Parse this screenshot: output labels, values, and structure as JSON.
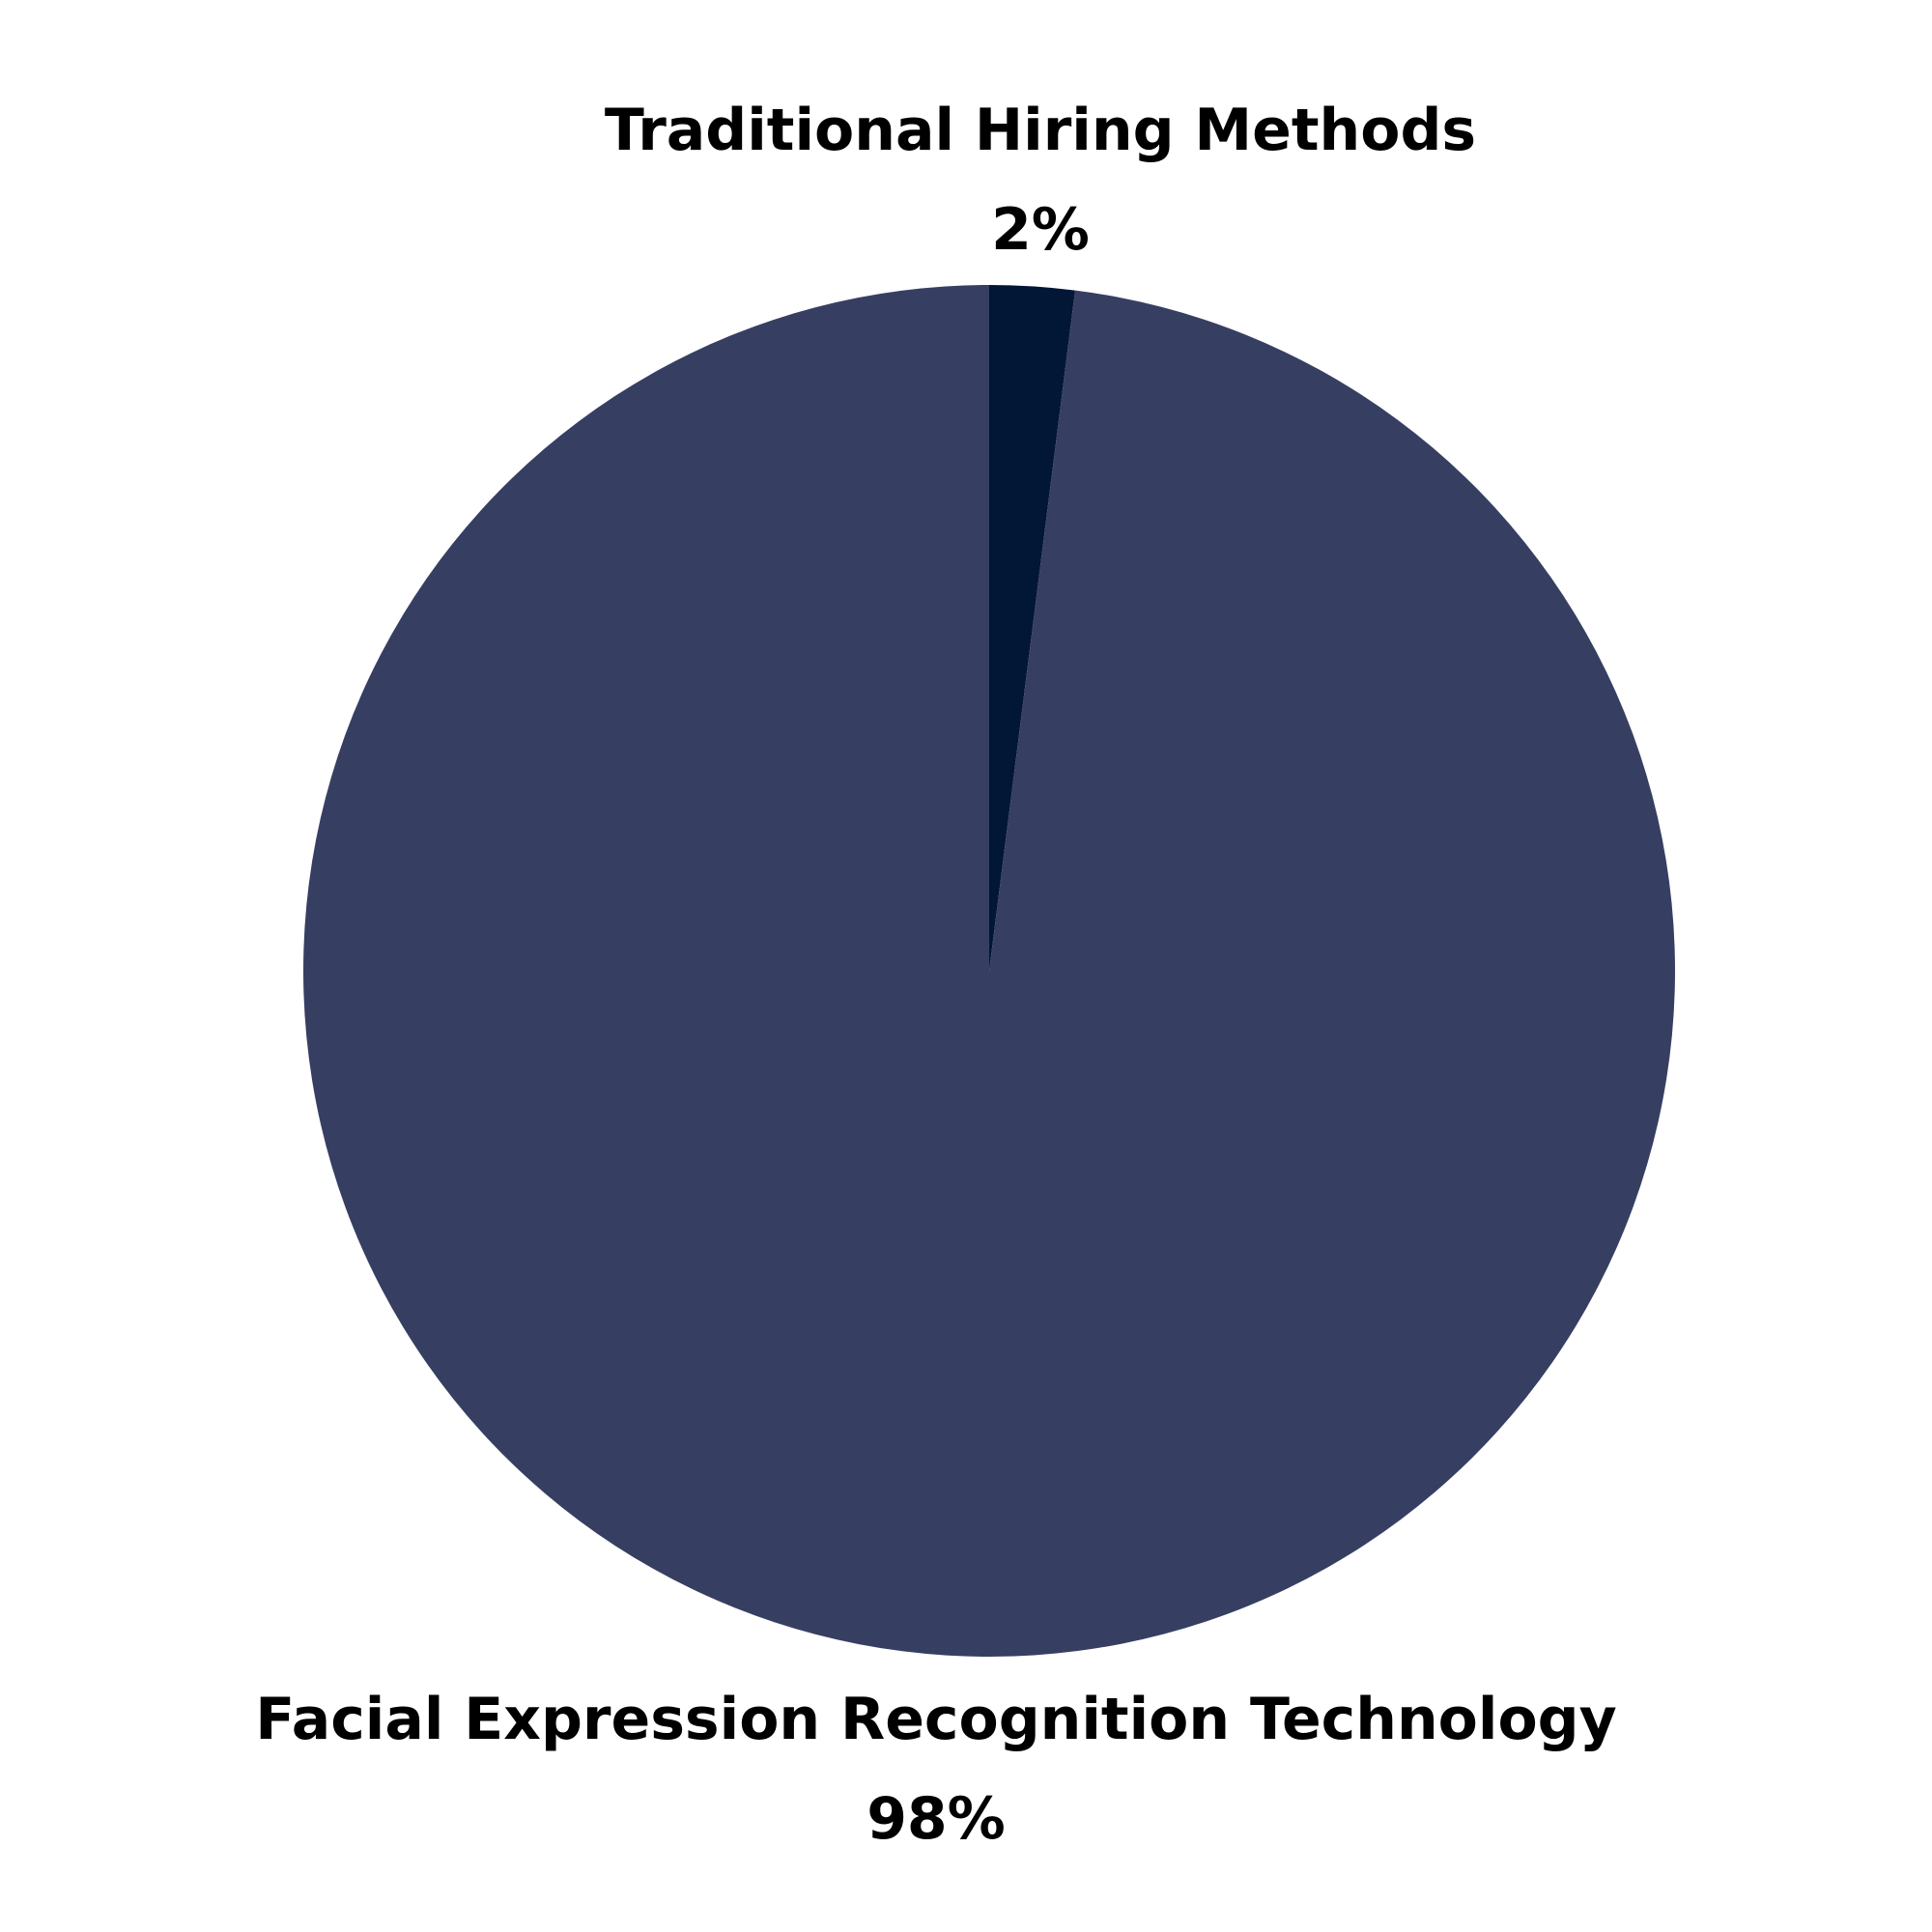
{
  "chart_data": {
    "type": "pie",
    "slices": [
      {
        "label": "Traditional Hiring Methods",
        "value": 2,
        "value_label": "2%",
        "color": "#021636"
      },
      {
        "label": "Facial Expression Recognition Technology",
        "value": 98,
        "value_label": "98%",
        "color": "#363F62"
      }
    ],
    "start": "top",
    "direction": "clockwise",
    "legend": "none"
  }
}
